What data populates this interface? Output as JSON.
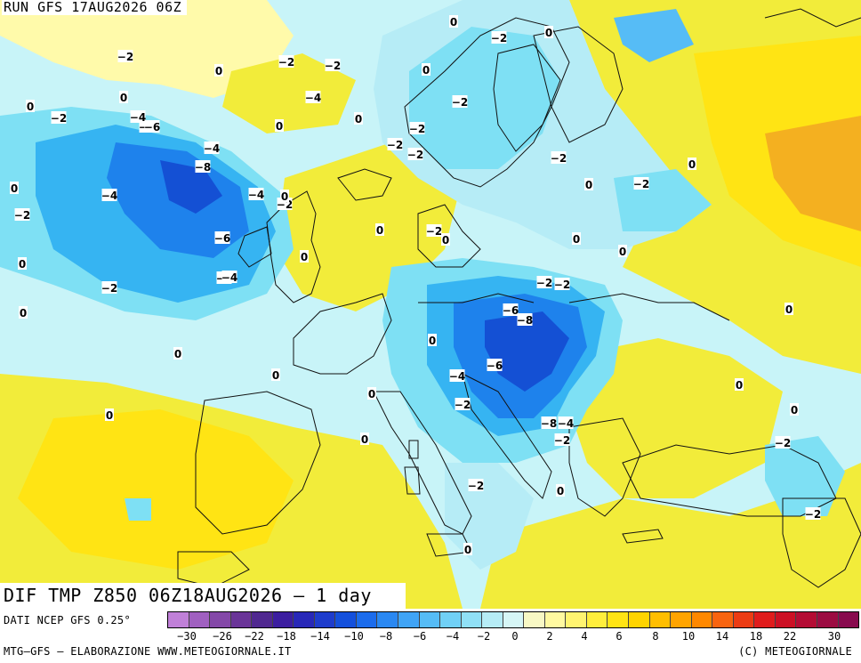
{
  "run_title": "RUN GFS 17AUG2026 06Z",
  "main_title": "DIF TMP Z850 06Z18AUG2026 – 1 day",
  "data_source": "DATI NCEP GFS 0.25°",
  "credits": "MTG–GFS – ELABORAZIONE WWW.METEOGIORNALE.IT",
  "copyright": "(C) METEOGIORNALE",
  "colors": {
    "sea_bg": "#c8f4f8",
    "land_base": "#f2ec3a",
    "light_yellow": "#fffaaa",
    "orange": "#f4b020",
    "light_blue": "#7ee0f4",
    "mid_blue": "#36b4f2",
    "blue": "#1e82ec",
    "deep_blue": "#1450d4",
    "coast": "#111111"
  },
  "scale": {
    "colors": [
      "#c080d8",
      "#a060c0",
      "#8448a8",
      "#6a3498",
      "#502890",
      "#3c1ea0",
      "#2828b8",
      "#1e3ccc",
      "#1450dc",
      "#1c6cec",
      "#2a88f2",
      "#40a4f6",
      "#56bcf6",
      "#70d0f6",
      "#90e0f6",
      "#b6ecf6",
      "#d6f6f6",
      "#f8f8c4",
      "#fff9a0",
      "#fff470",
      "#ffee3c",
      "#ffe414",
      "#ffd400",
      "#ffbe00",
      "#ffa400",
      "#ff8800",
      "#f86410",
      "#ec3c14",
      "#e01c1c",
      "#cc1024",
      "#b40c34",
      "#9c0c42",
      "#880a4e"
    ],
    "labels": [
      "−30",
      "−26",
      "−22",
      "−18",
      "−14",
      "−10",
      "−8",
      "−6",
      "−4",
      "−2",
      "0",
      "2",
      "4",
      "6",
      "8",
      "10",
      "14",
      "18",
      "22",
      "30"
    ]
  },
  "contour_labels": [
    "0",
    "−2",
    "0",
    "−2",
    "0",
    "−2",
    "−2",
    "0",
    "−4",
    "−2",
    "0",
    "0",
    "−2",
    "−2",
    "0",
    "−2",
    "−4",
    "−6",
    "0",
    "−2",
    "−4",
    "−2",
    "−8",
    "0",
    "−4",
    "−2",
    "−4",
    "0",
    "−2",
    "0",
    "0",
    "−6",
    "−2",
    "0",
    "0",
    "−2",
    "0",
    "−2",
    "−4",
    "−2",
    "0",
    "−4",
    "−2",
    "−6",
    "−8",
    "0",
    "−2",
    "0",
    "−6",
    "0",
    "0",
    "−4",
    "0",
    "0",
    "−2",
    "0",
    "−8",
    "−4",
    "0",
    "−2",
    "0",
    "0",
    "−2",
    "0",
    "−2",
    "0",
    "−2",
    "0",
    "0"
  ]
}
